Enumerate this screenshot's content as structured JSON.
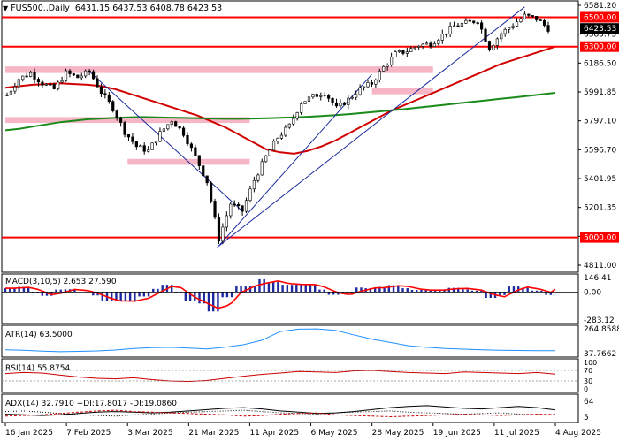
{
  "header": {
    "symbol": "FUS500.,Daily",
    "open": "6431.15",
    "high": "6437.53",
    "low": "6408.78",
    "close": "6423.53"
  },
  "colors": {
    "bull": "#000000",
    "bear": "#000000",
    "ma_fast": "#d00000",
    "ma_slow": "#1a8a1a",
    "level": "#ff0000",
    "zone": "#f7b6c6",
    "trend": "#1c2a9e",
    "macd_hist": "#1c2a9e",
    "macd_signal": "#ff0000",
    "atr": "#1e90ff",
    "rsi": "#cc0000",
    "adx": "#000000"
  },
  "chart_data": [
    {
      "type": "candlestick",
      "title": "FUS500.,Daily",
      "x_tick_labels": [
        "16 Jan 2025",
        "7 Feb 2025",
        "3 Mar 2025",
        "21 Mar 2025",
        "11 Apr 2025",
        "6 May 2025",
        "28 May 2025",
        "19 Jun 2025",
        "11 Jul 2025",
        "4 Aug 2025"
      ],
      "y_tick_labels": [
        "6581.20",
        "6383.75",
        "6186.50",
        "5991.85",
        "5797.10",
        "5596.70",
        "5401.95",
        "5201.35",
        "5011.85",
        "4811.00"
      ],
      "ylim": [
        4811,
        6581.2
      ],
      "price_tags": [
        {
          "label": "6500.00",
          "value": 6500,
          "style": "level"
        },
        {
          "label": "6423.53",
          "value": 6423.53,
          "style": "current"
        },
        {
          "label": "6300.00",
          "value": 6300,
          "style": "level"
        },
        {
          "label": "5000.00",
          "value": 5000,
          "style": "level"
        }
      ],
      "horizontal_levels": [
        6500,
        6300,
        5000
      ],
      "resistance_zones": [
        {
          "from": "16 Jan 2025",
          "to": "19 Jun 2025",
          "low": 6120,
          "high": 6165
        },
        {
          "from": "28 May 2025",
          "to": "19 Jun 2025",
          "low": 5975,
          "high": 6020
        },
        {
          "from": "16 Jan 2025",
          "to": "11 Apr 2025",
          "low": 5780,
          "high": 5820
        },
        {
          "from": "3 Mar 2025",
          "to": "11 Apr 2025",
          "low": 5495,
          "high": 5535
        }
      ],
      "moving_averages": [
        {
          "color": "#d00000",
          "values": [
            6020,
            6030,
            6040,
            6045,
            6050,
            6045,
            6040,
            6030,
            6010,
            5980,
            5950,
            5920,
            5890,
            5860,
            5830,
            5790,
            5750,
            5700,
            5650,
            5600,
            5580,
            5570,
            5590,
            5620,
            5660,
            5710,
            5760,
            5810,
            5860,
            5900,
            5940,
            5980,
            6020,
            6060,
            6100,
            6140,
            6180,
            6210,
            6240,
            6270,
            6300
          ]
        },
        {
          "color": "#1a8a1a",
          "values": [
            5730,
            5740,
            5755,
            5770,
            5785,
            5795,
            5805,
            5810,
            5815,
            5818,
            5820,
            5818,
            5816,
            5814,
            5812,
            5810,
            5808,
            5808,
            5810,
            5812,
            5815,
            5818,
            5822,
            5827,
            5833,
            5840,
            5848,
            5856,
            5865,
            5874,
            5884,
            5894,
            5904,
            5914,
            5924,
            5934,
            5944,
            5954,
            5964,
            5974,
            5985
          ]
        }
      ],
      "close_path": [
        5970,
        6080,
        6120,
        6050,
        6010,
        6120,
        6090,
        6130,
        5990,
        5880,
        5720,
        5620,
        5590,
        5710,
        5800,
        5710,
        5550,
        5380,
        4990,
        5230,
        5180,
        5390,
        5550,
        5680,
        5760,
        5920,
        5960,
        5990,
        5880,
        5940,
        6010,
        6050,
        6160,
        6250,
        6270,
        6310,
        6320,
        6380,
        6440,
        6460,
        6480,
        6290,
        6390,
        6450,
        6510,
        6490,
        6423
      ]
    },
    {
      "type": "bar",
      "title": "MACD(3,10,5) 2.653 27.590",
      "y_tick_labels": [
        "146.41",
        "0.00",
        "-283.12"
      ],
      "ylim": [
        -283.12,
        146.41
      ],
      "main": 2.653,
      "signal": 27.59
    },
    {
      "type": "line",
      "title": "ATR(14) 63.5000",
      "y_tick_labels": [
        "264.8588",
        "37.7662"
      ],
      "ylim": [
        37.7662,
        264.8588
      ],
      "values": [
        72,
        68,
        60,
        55,
        58,
        62,
        70,
        85,
        92,
        95,
        88,
        80,
        96,
        120,
        160,
        240,
        262,
        264,
        250,
        210,
        170,
        140,
        110,
        95,
        85,
        78,
        72,
        68,
        66,
        64,
        63.5
      ]
    },
    {
      "type": "line",
      "title": "RSI(14) 55.8754",
      "y_tick_labels": [
        "100",
        "70",
        "30",
        "0"
      ],
      "ylim": [
        0,
        100
      ],
      "values": [
        58,
        62,
        60,
        52,
        45,
        40,
        38,
        42,
        35,
        30,
        28,
        32,
        40,
        48,
        55,
        60,
        66,
        64,
        62,
        68,
        70,
        66,
        62,
        60,
        58,
        64,
        62,
        60,
        58,
        62,
        55.8754
      ]
    },
    {
      "type": "line",
      "title": "ADX(14) 32.7910 +DI:17.8017 -DI:19.0860",
      "y_tick_labels": [
        "64",
        "5"
      ],
      "ylim": [
        0,
        70
      ],
      "series": [
        {
          "name": "ADX",
          "values": [
            20,
            18,
            16,
            18,
            22,
            26,
            28,
            26,
            24,
            26,
            30,
            34,
            38,
            40,
            36,
            30,
            26,
            22,
            24,
            28,
            34,
            40,
            44,
            46,
            42,
            38,
            36,
            40,
            44,
            40,
            32.791
          ]
        },
        {
          "name": "+DI",
          "values": [
            28,
            30,
            26,
            22,
            18,
            16,
            14,
            18,
            20,
            24,
            26,
            28,
            30,
            32,
            28,
            24,
            22,
            20,
            24,
            26,
            28,
            30,
            26,
            24,
            22,
            20,
            22,
            24,
            20,
            18,
            17.8017
          ]
        },
        {
          "name": "-DI",
          "values": [
            14,
            16,
            18,
            22,
            26,
            30,
            32,
            28,
            26,
            24,
            22,
            20,
            18,
            14,
            16,
            20,
            22,
            24,
            18,
            16,
            14,
            12,
            14,
            16,
            18,
            20,
            18,
            16,
            18,
            20,
            19.086
          ]
        }
      ]
    }
  ]
}
